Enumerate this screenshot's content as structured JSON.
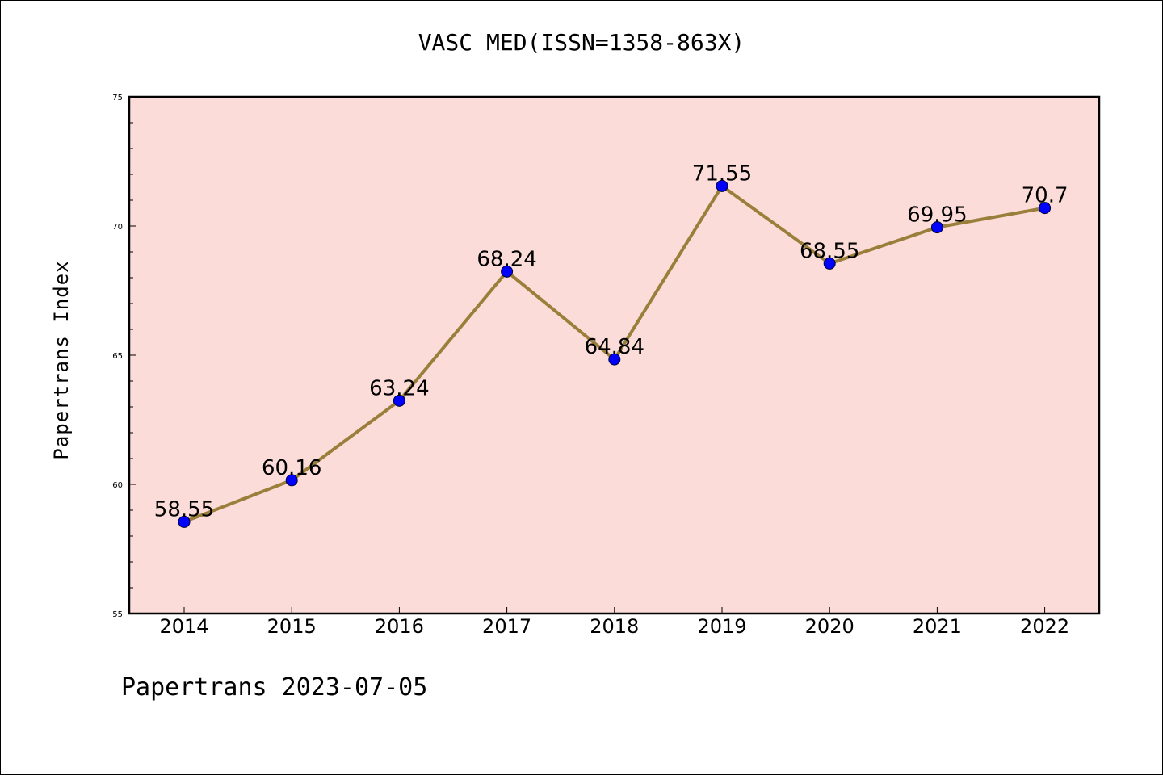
{
  "title": "VASC MED(ISSN=1358-863X)",
  "ylabel": "Papertrans Index",
  "footer": "Papertrans 2023-07-05",
  "colors": {
    "plot_background": "#fcdcd9",
    "line": "#9a7f3a",
    "marker": "#0000ff",
    "axis": "#000000"
  },
  "chart_data": {
    "type": "line",
    "title": "VASC MED(ISSN=1358-863X)",
    "xlabel": "",
    "ylabel": "Papertrans Index",
    "categories": [
      "2014",
      "2015",
      "2016",
      "2017",
      "2018",
      "2019",
      "2020",
      "2021",
      "2022"
    ],
    "series": [
      {
        "values": [
          58.55,
          60.16,
          63.24,
          68.24,
          64.84,
          71.55,
          68.55,
          69.95,
          70.7
        ],
        "labels": [
          "58.55",
          "60.16",
          "63.24",
          "68.24",
          "64.84",
          "71.55",
          "68.55",
          "69.95",
          "70.7"
        ]
      }
    ],
    "ylim": [
      55,
      75
    ],
    "yticks": [
      "55",
      "60",
      "65",
      "70",
      "75"
    ],
    "grid": false,
    "legend": "none"
  }
}
